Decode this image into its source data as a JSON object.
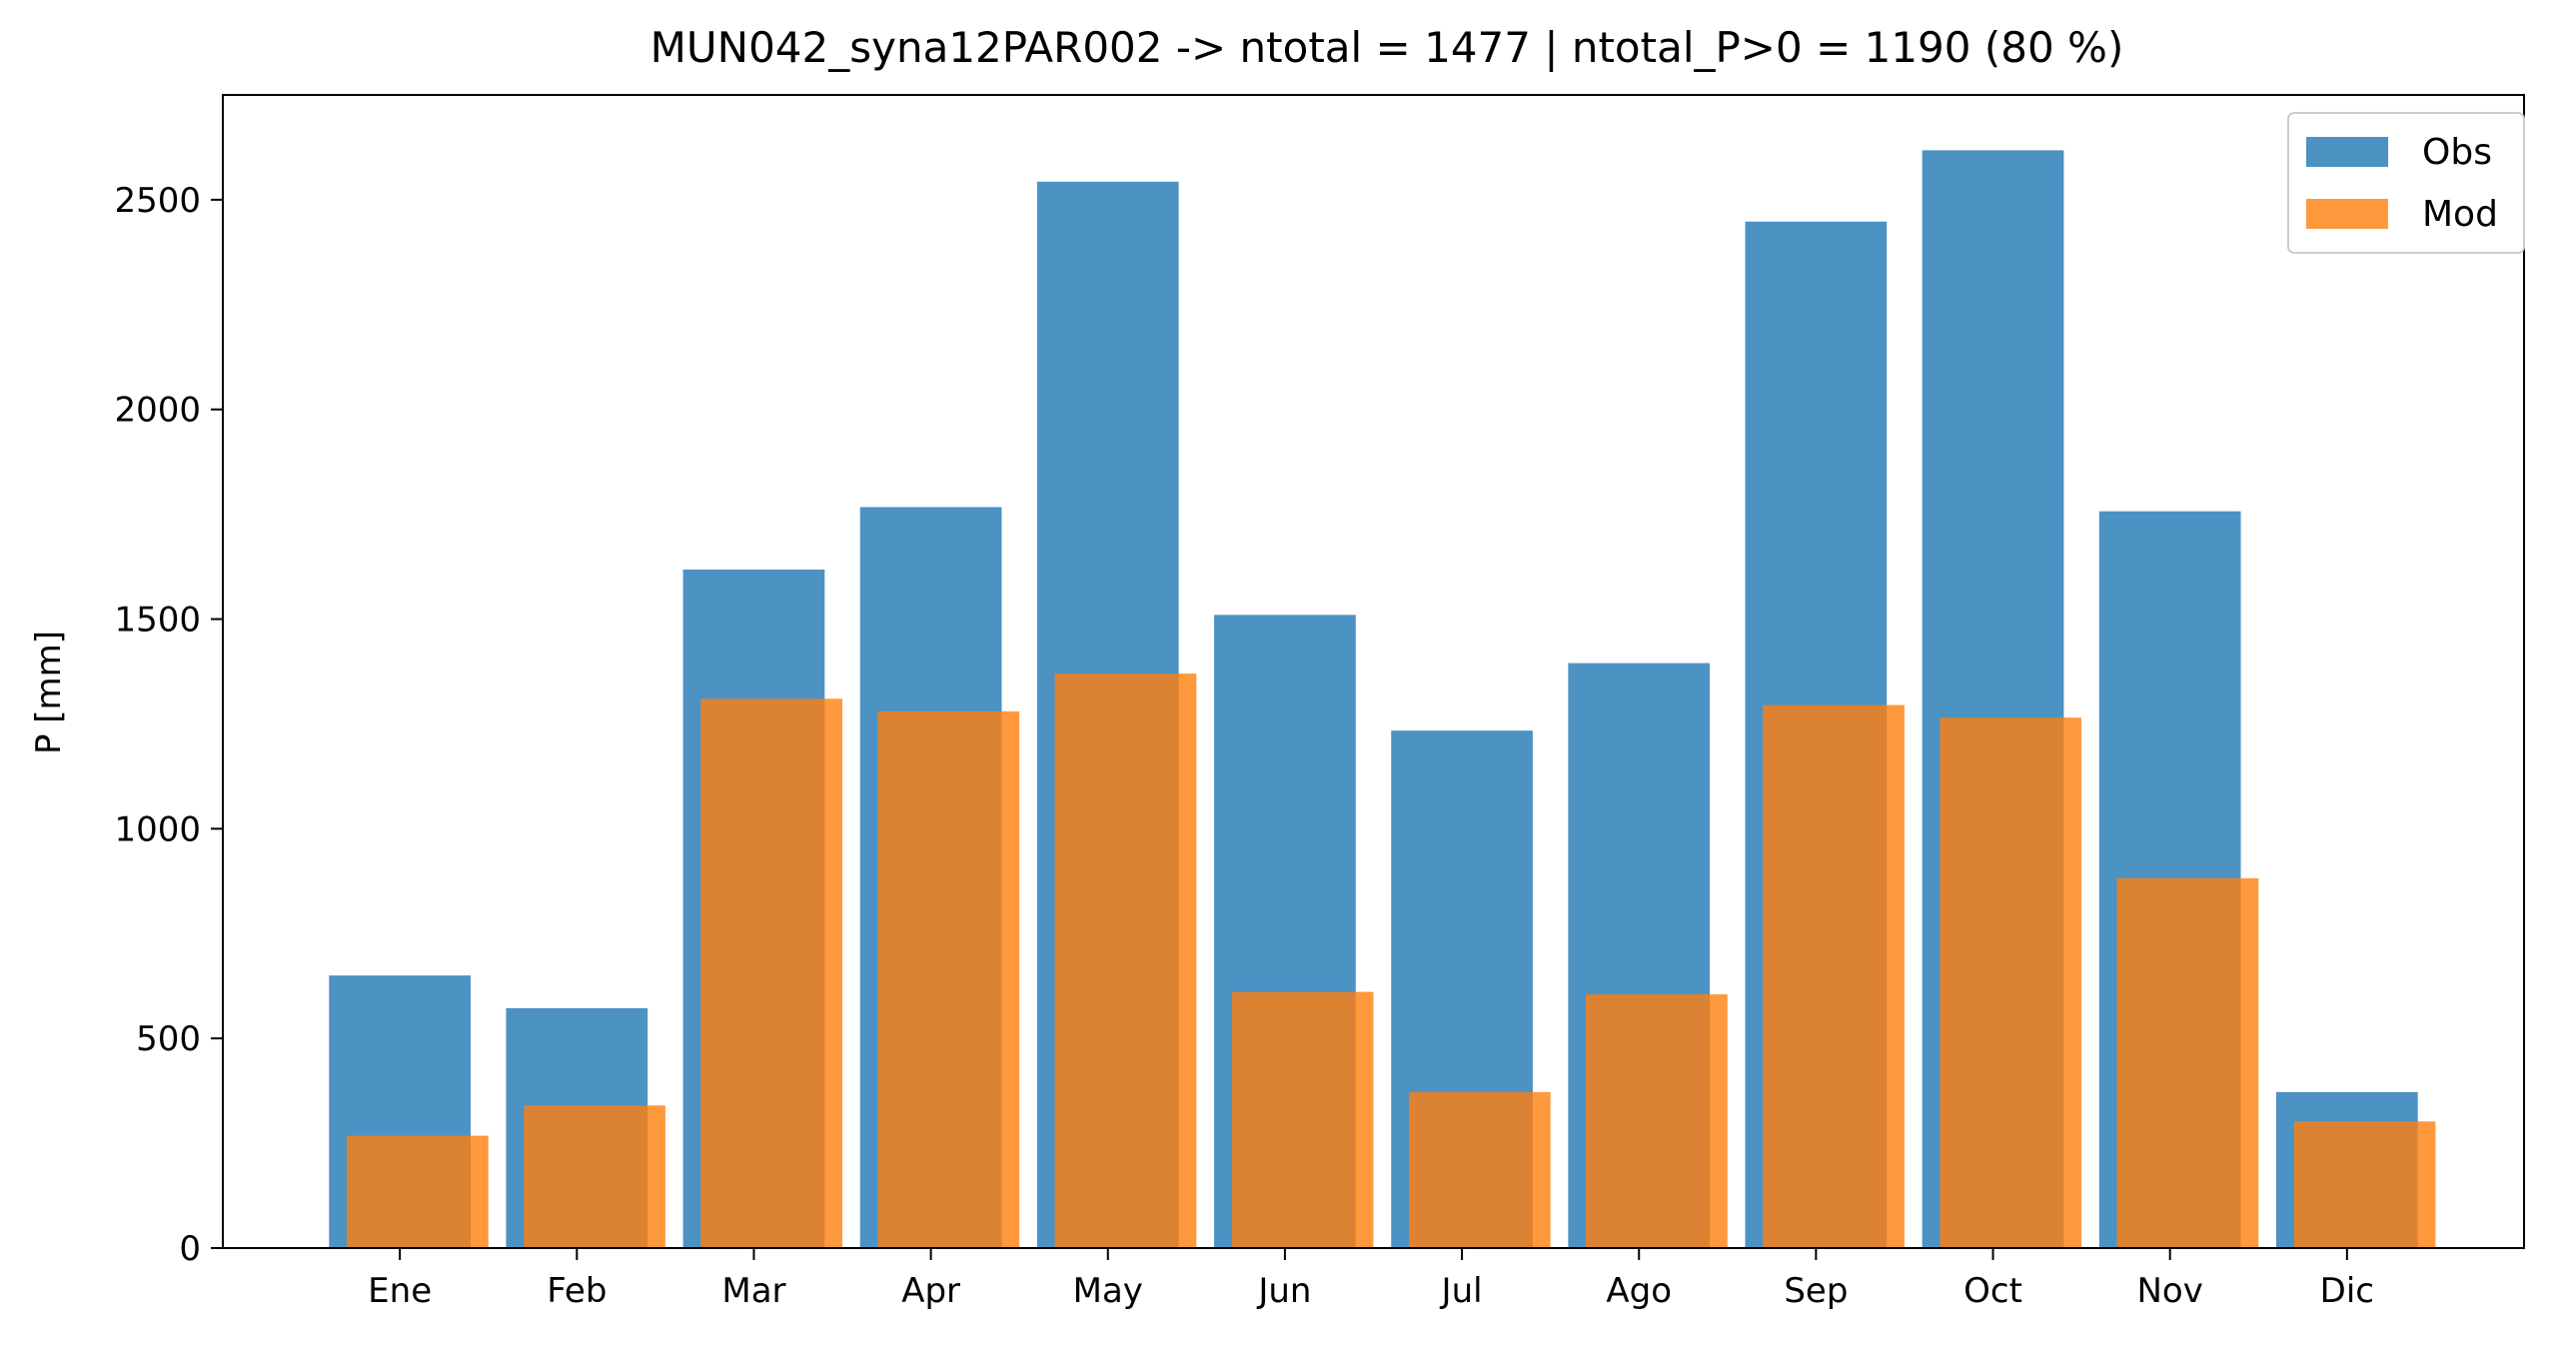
{
  "chart_data": {
    "type": "bar",
    "title": "MUN042_syna12PAR002 -> ntotal = 1477 | ntotal_P>0 = 1190 (80 %)",
    "xlabel": "",
    "ylabel": "P [mm]",
    "categories": [
      "Ene",
      "Feb",
      "Mar",
      "Apr",
      "May",
      "Jun",
      "Jul",
      "Ago",
      "Sep",
      "Oct",
      "Nov",
      "Dic"
    ],
    "series": [
      {
        "name": "Obs",
        "color": "#1f77b4",
        "values": [
          650,
          572,
          1618,
          1767,
          2543,
          1510,
          1234,
          1395,
          2448,
          2618,
          1757,
          372
        ]
      },
      {
        "name": "Mod",
        "color": "#ff7f0e",
        "values": [
          268,
          340,
          1310,
          1280,
          1370,
          611,
          372,
          605,
          1295,
          1265,
          882,
          302
        ]
      }
    ],
    "ylim": [
      0,
      2750
    ],
    "yticks": [
      0,
      500,
      1000,
      1500,
      2000,
      2500
    ],
    "grid": false,
    "legend_position": "top-right"
  }
}
